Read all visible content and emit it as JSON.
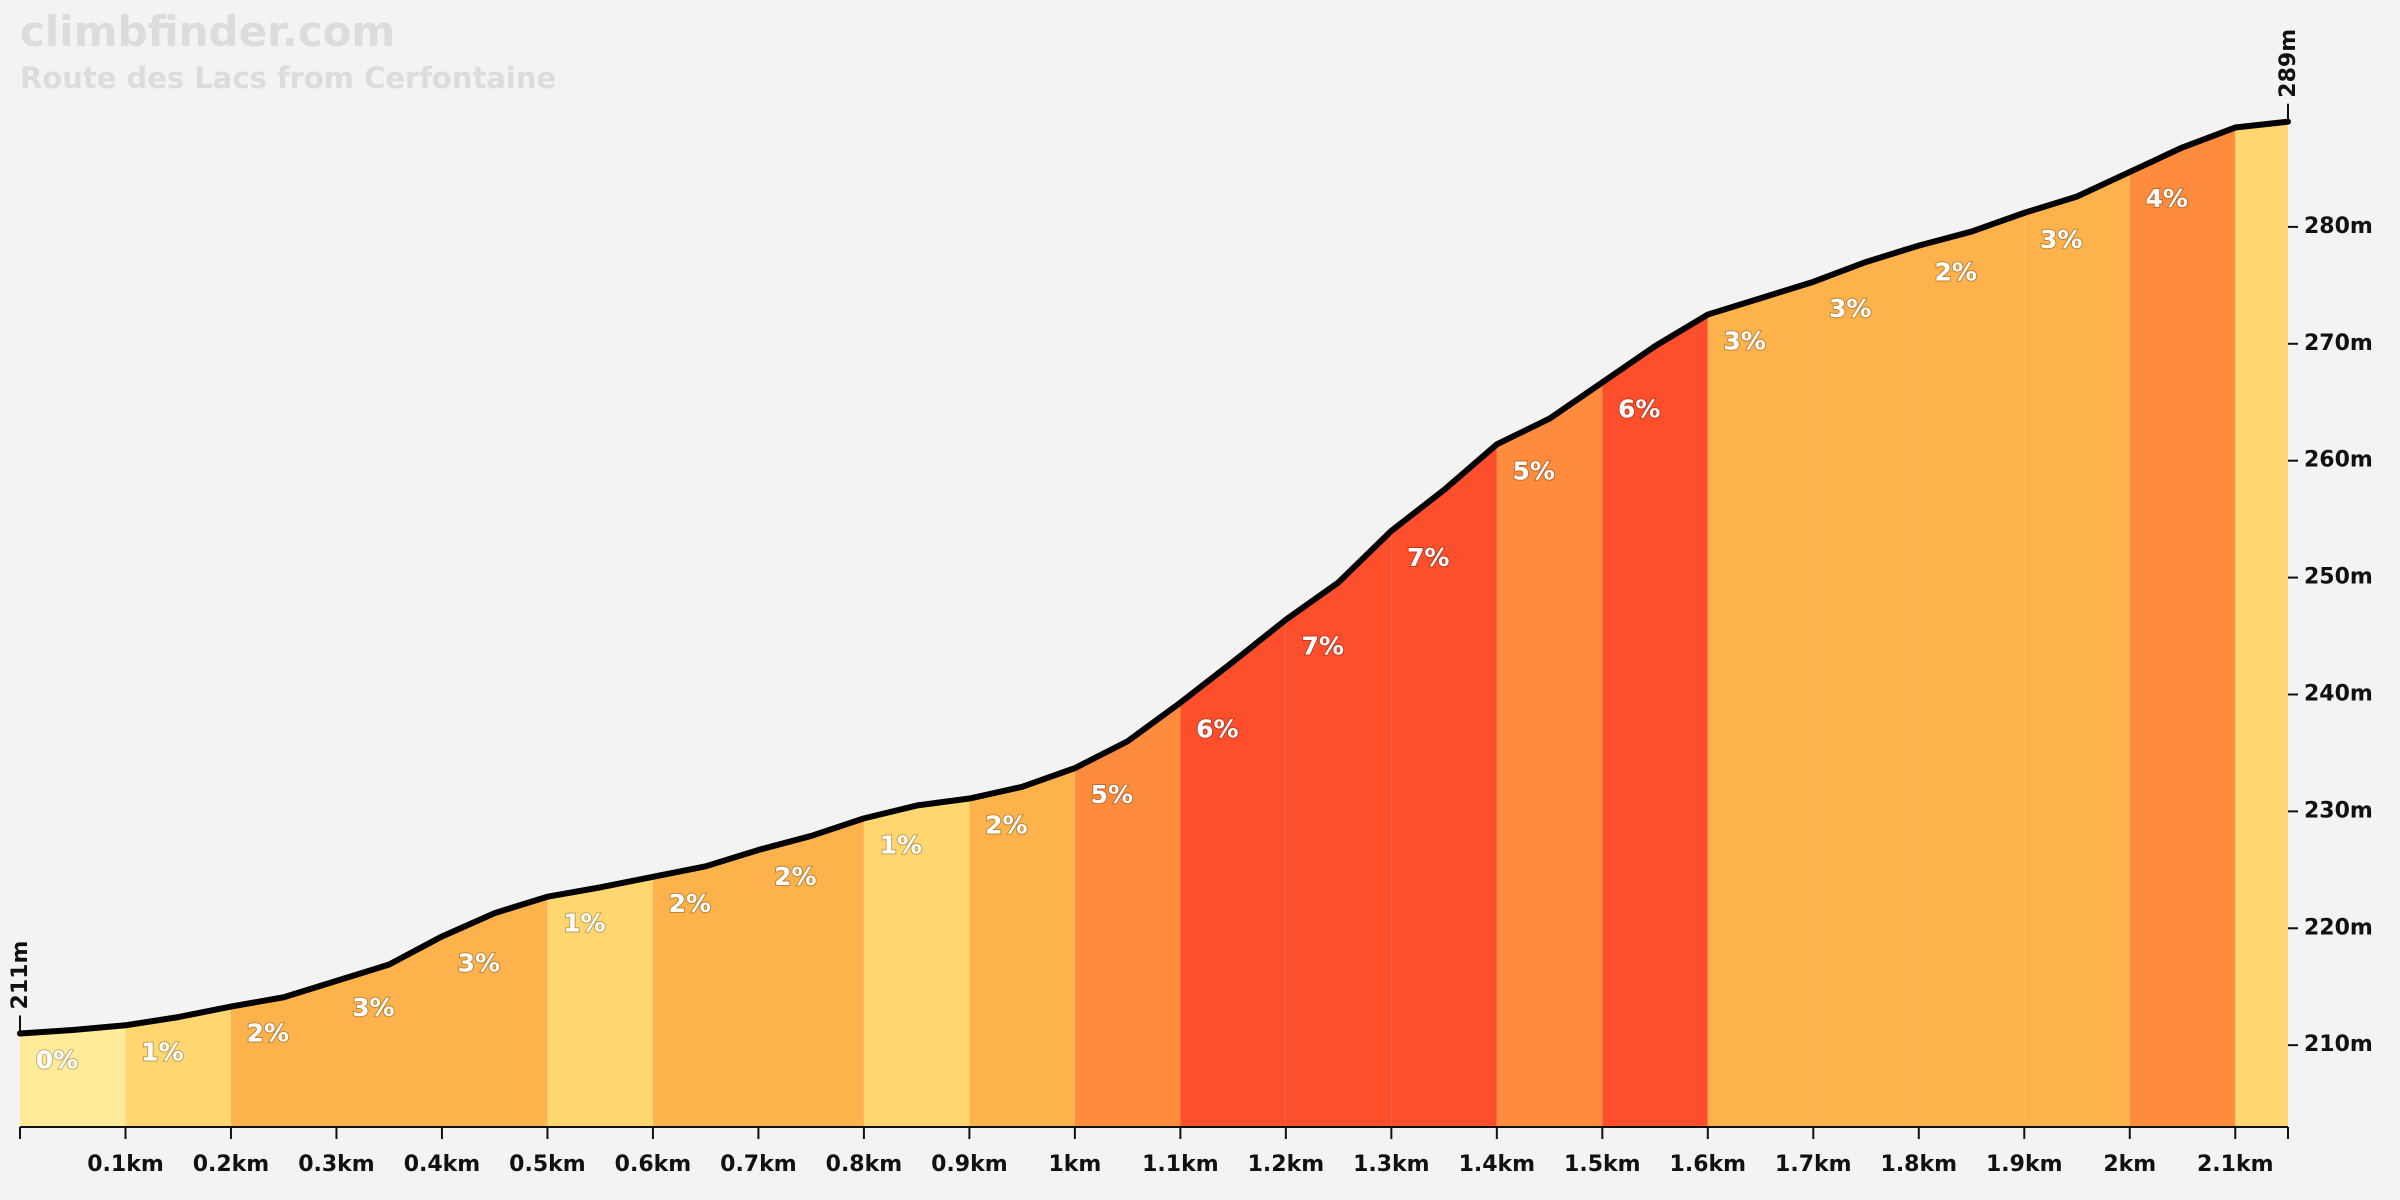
{
  "chart_data": {
    "type": "profile",
    "title": "climbfinder.com",
    "subtitle": "Route des Lacs from Cerfontaine",
    "start_label": "211m",
    "end_label": "289m",
    "x": [
      0,
      0.05,
      0.1,
      0.15,
      0.2,
      0.25,
      0.3,
      0.35,
      0.4,
      0.45,
      0.5,
      0.55,
      0.6,
      0.65,
      0.7,
      0.75,
      0.8,
      0.85,
      0.9,
      0.95,
      1.0,
      1.05,
      1.1,
      1.15,
      1.2,
      1.25,
      1.3,
      1.35,
      1.4,
      1.45,
      1.5,
      1.55,
      1.6,
      1.65,
      1.7,
      1.75,
      1.8,
      1.85,
      1.9,
      1.95,
      2.0,
      2.05,
      2.1,
      2.15
    ],
    "values": [
      211,
      211.3,
      211.7,
      212.4,
      213.3,
      214.1,
      215.5,
      216.9,
      219.3,
      221.3,
      222.7,
      223.5,
      224.4,
      225.3,
      226.7,
      227.9,
      229.4,
      230.5,
      231.1,
      232.1,
      233.7,
      236.0,
      239.3,
      242.8,
      246.4,
      249.6,
      254.0,
      257.5,
      261.4,
      263.6,
      266.7,
      269.8,
      272.5,
      273.9,
      275.3,
      277.0,
      278.4,
      279.6,
      281.2,
      282.6,
      284.7,
      286.8,
      288.5,
      289
    ],
    "segments": {
      "edges": [
        0,
        0.1,
        0.2,
        0.3,
        0.4,
        0.5,
        0.6,
        0.7,
        0.8,
        0.9,
        1.0,
        1.1,
        1.2,
        1.3,
        1.4,
        1.5,
        1.6,
        1.7,
        1.8,
        1.9,
        2.0,
        2.1,
        2.15
      ],
      "grades": [
        0,
        1,
        2,
        3,
        3,
        1,
        2,
        2,
        1,
        2,
        5,
        6,
        7,
        7,
        5,
        6,
        3,
        3,
        2,
        3,
        4,
        null
      ],
      "value_labels": [
        "0%",
        "1%",
        "2%",
        "3%",
        "3%",
        "1%",
        "2%",
        "2%",
        "1%",
        "2%",
        "5%",
        "6%",
        "7%",
        "7%",
        "5%",
        "6%",
        "3%",
        "3%",
        "2%",
        "3%",
        "4%",
        null
      ],
      "colors": [
        "#ffeb99",
        "#ffd670",
        "#fdb24c",
        "#fdb24c",
        "#fdb24c",
        "#ffd670",
        "#fdb24c",
        "#fdb24c",
        "#ffd670",
        "#fdb24c",
        "#fe8c3c",
        "#fe4f2d",
        "#fe4f2d",
        "#fe4f2d",
        "#fe8c3c",
        "#fe4f2d",
        "#fdb24c",
        "#fdb24c",
        "#fdb24c",
        "#fdb24c",
        "#fe8c3c",
        "#ffd670"
      ]
    },
    "line_color": "#000000",
    "xlim": [
      0,
      2.15
    ],
    "ylim": [
      203,
      290
    ],
    "xticks": [
      {
        "value": 0.1,
        "label": "0.1km"
      },
      {
        "value": 0.2,
        "label": "0.2km"
      },
      {
        "value": 0.3,
        "label": "0.3km"
      },
      {
        "value": 0.4,
        "label": "0.4km"
      },
      {
        "value": 0.5,
        "label": "0.5km"
      },
      {
        "value": 0.6,
        "label": "0.6km"
      },
      {
        "value": 0.7,
        "label": "0.7km"
      },
      {
        "value": 0.8,
        "label": "0.8km"
      },
      {
        "value": 0.9,
        "label": "0.9km"
      },
      {
        "value": 1,
        "label": "1km"
      },
      {
        "value": 1.1,
        "label": "1.1km"
      },
      {
        "value": 1.2,
        "label": "1.2km"
      },
      {
        "value": 1.3,
        "label": "1.3km"
      },
      {
        "value": 1.4,
        "label": "1.4km"
      },
      {
        "value": 1.5,
        "label": "1.5km"
      },
      {
        "value": 1.6,
        "label": "1.6km"
      },
      {
        "value": 1.7,
        "label": "1.7km"
      },
      {
        "value": 1.8,
        "label": "1.8km"
      },
      {
        "value": 1.9,
        "label": "1.9km"
      },
      {
        "value": 2,
        "label": "2km"
      },
      {
        "value": 2.1,
        "label": "2.1km"
      }
    ],
    "yticks": [
      {
        "value": 210,
        "label": "210m"
      },
      {
        "value": 220,
        "label": "220m"
      },
      {
        "value": 230,
        "label": "230m"
      },
      {
        "value": 240,
        "label": "240m"
      },
      {
        "value": 250,
        "label": "250m"
      },
      {
        "value": 260,
        "label": "260m"
      },
      {
        "value": 270,
        "label": "270m"
      },
      {
        "value": 280,
        "label": "280m"
      }
    ]
  }
}
